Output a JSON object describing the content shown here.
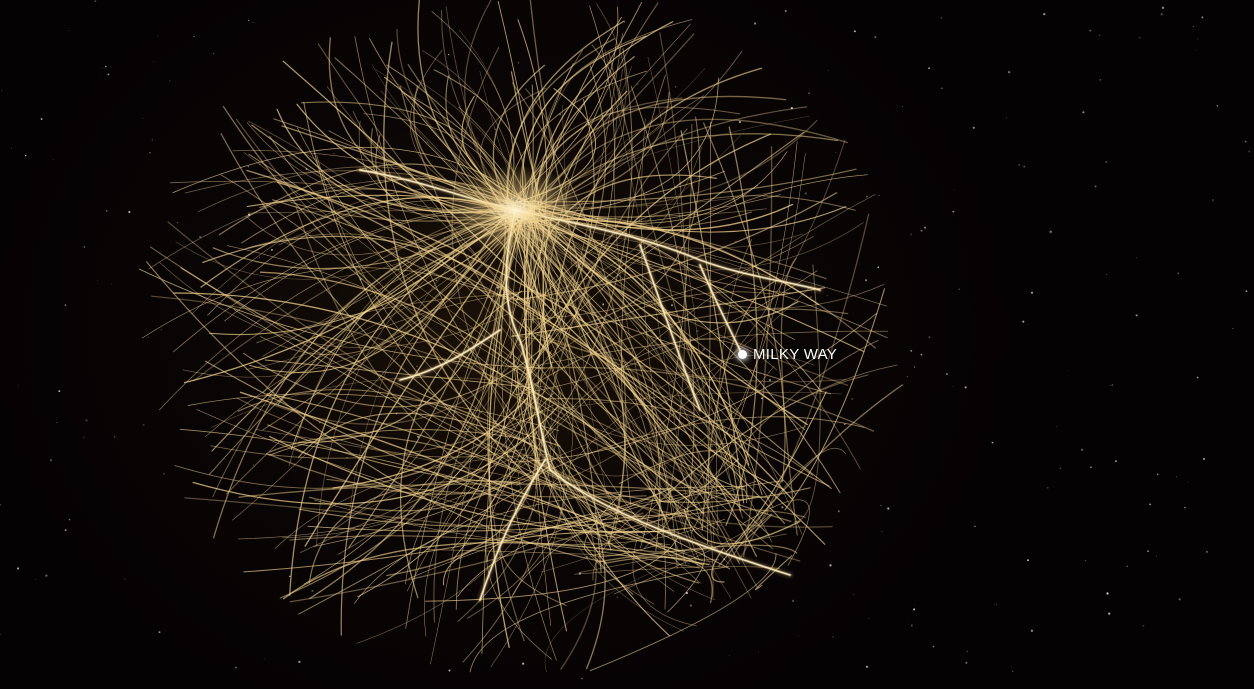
{
  "colors": {
    "background": "#050203",
    "streamline": "#f5d58f",
    "streamline_core": "#fff3cf",
    "marker": "#ffffff",
    "label": "#ffffff"
  },
  "annotation": {
    "label": "MILKY WAY"
  }
}
